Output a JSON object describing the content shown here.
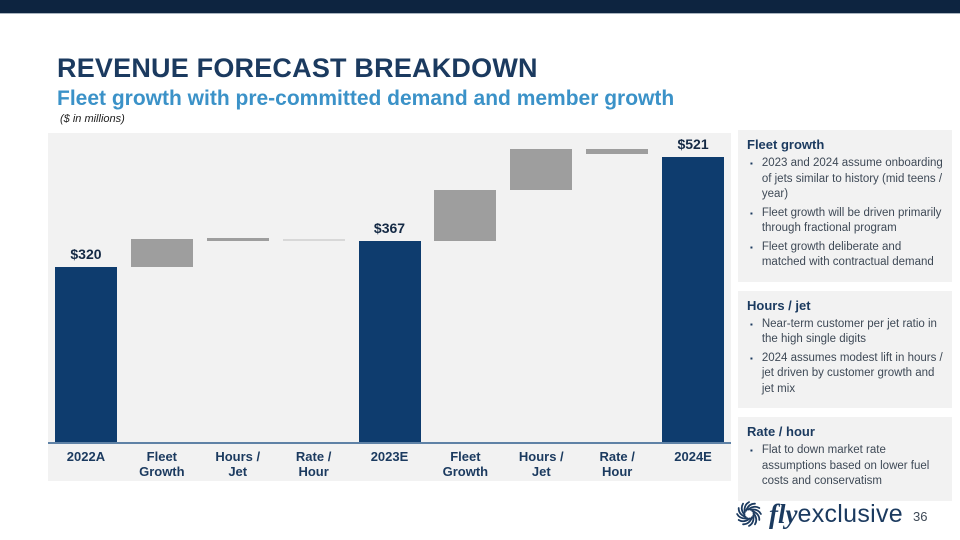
{
  "slide": {
    "title": "REVENUE FORECAST BREAKDOWN",
    "subtitle": "Fleet growth with pre-committed demand and member growth",
    "units_note": "($ in millions)",
    "page_number": "36"
  },
  "brand": {
    "icon": "pinwheel-swirl-icon",
    "name_italic": "fly",
    "name_regular": "exclusive"
  },
  "colors": {
    "topbar": "#0D2440",
    "title": "#1B3A5F",
    "subtitle": "#3B92C8",
    "navy_bar": "#0E3C6E",
    "gray_bar": "#9E9E9E",
    "light_gray_bar": "#D8D8D8",
    "panel_bg": "#F2F2F2"
  },
  "bullet_glyph": "▪",
  "chart_data": {
    "type": "bar",
    "subtype": "waterfall",
    "title": "Revenue forecast breakdown ($ in millions)",
    "categories": [
      "2022A",
      "Fleet Growth",
      "Hours / Jet",
      "Rate / Hour",
      "2023E",
      "Fleet Growth",
      "Hours / Jet",
      "Rate / Hour",
      "2024E"
    ],
    "axis_label_lines": [
      [
        "2022A"
      ],
      [
        "Fleet",
        "Growth"
      ],
      [
        "Hours /",
        "Jet"
      ],
      [
        "Rate /",
        "Hour"
      ],
      [
        "2023E"
      ],
      [
        "Fleet",
        "Growth"
      ],
      [
        "Hours /",
        "Jet"
      ],
      [
        "Rate /",
        "Hour"
      ],
      [
        "2024E"
      ]
    ],
    "bars": [
      {
        "label": "2022A",
        "kind": "total",
        "start": 0,
        "end": 320,
        "value_label": "$320"
      },
      {
        "label": "Fleet Growth",
        "kind": "delta",
        "start": 320,
        "end": 372,
        "value_label": ""
      },
      {
        "label": "Hours / Jet",
        "kind": "delta",
        "start": 367,
        "end": 373,
        "value_label": ""
      },
      {
        "label": "Rate / Hour",
        "kind": "delta-light",
        "start": 368,
        "end": 372,
        "value_label": ""
      },
      {
        "label": "2023E",
        "kind": "total",
        "start": 0,
        "end": 367,
        "value_label": "$367"
      },
      {
        "label": "Fleet Growth",
        "kind": "delta",
        "start": 367,
        "end": 460,
        "value_label": ""
      },
      {
        "label": "Hours / Jet",
        "kind": "delta",
        "start": 461,
        "end": 536,
        "value_label": ""
      },
      {
        "label": "Rate / Hour",
        "kind": "delta",
        "start": 527,
        "end": 536,
        "value_label": ""
      },
      {
        "label": "2024E",
        "kind": "total",
        "start": 0,
        "end": 521,
        "value_label": "$521"
      }
    ],
    "totals": {
      "2022A": 320,
      "2023E": 367,
      "2024E": 521
    },
    "ylim": [
      0,
      585
    ],
    "grid": false,
    "legend": false
  },
  "sidebar": {
    "sections": [
      {
        "heading": "Fleet growth",
        "bullets": [
          "2023 and 2024 assume onboarding of jets similar to history (mid teens / year)",
          "Fleet growth will be driven primarily through fractional program",
          "Fleet growth deliberate and matched with contractual demand"
        ]
      },
      {
        "heading": "Hours / jet",
        "bullets": [
          "Near-term customer per jet ratio in the high single digits",
          "2024 assumes modest lift in hours / jet driven by customer growth and jet mix"
        ]
      },
      {
        "heading": "Rate / hour",
        "bullets": [
          "Flat to down market rate assumptions based on lower fuel costs and conservatism"
        ]
      }
    ]
  }
}
